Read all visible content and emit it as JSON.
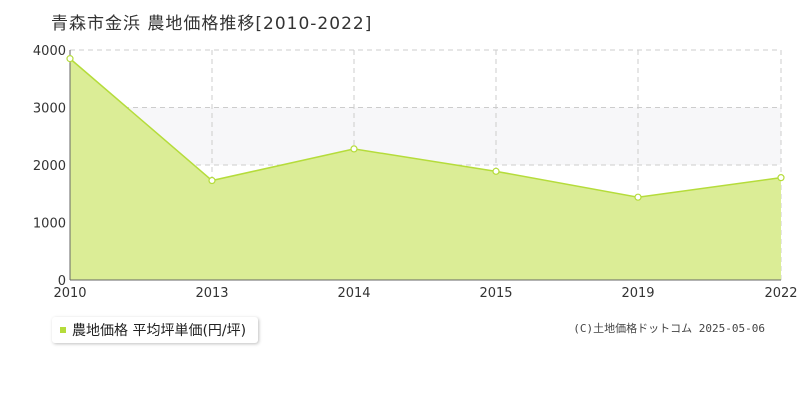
{
  "title": "青森市金浜 農地価格推移[2010-2022]",
  "legend_label": "農地価格 平均坪単価(円/坪)",
  "copyright": "(C)土地価格ドットコム 2025-05-06",
  "colors": {
    "fill": "#dbed96",
    "line": "#b5dc3b",
    "band": "#f7f7f9",
    "grid": "#cccccc"
  },
  "chart_data": {
    "type": "area",
    "title": "青森市金浜 農地価格推移[2010-2022]",
    "x": [
      "2010",
      "2013",
      "2014",
      "2015",
      "2019",
      "2022"
    ],
    "y_ticks": [
      0,
      1000,
      2000,
      3000,
      4000
    ],
    "ylim": [
      0,
      4000
    ],
    "grid": true,
    "legend_position": "bottom-left",
    "series": [
      {
        "name": "農地価格 平均坪単価(円/坪)",
        "values": [
          3850,
          1730,
          2280,
          1890,
          1440,
          1780
        ]
      }
    ]
  }
}
